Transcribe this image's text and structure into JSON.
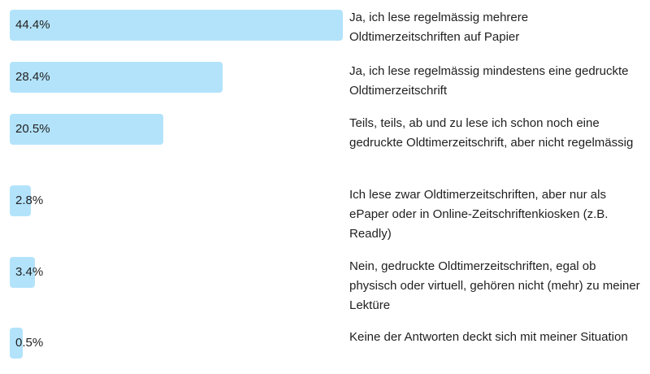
{
  "chart_data": {
    "type": "bar",
    "orientation": "horizontal",
    "color": "#b3e3fb",
    "unit": "%",
    "categories": [
      "Ja, ich lese regelmässig mehrere Oldtimerzeitschriften auf Papier",
      "Ja, ich lese regelmässig mindestens eine gedruckte Oldtimerzeitschrift",
      "Teils, teils, ab und zu lese ich schon noch eine gedruckte Oldtimerzeitschrift, aber nicht regelmässig",
      "Ich lese zwar Oldtimerzeitschriften, aber nur als ePaper oder in Online-Zeitschriftenkiosken (z.B. Readly)",
      "Nein, gedruckte Oldtimerzeitschriften, egal ob physisch oder virtuell, gehören nicht (mehr) zu meiner Lektüre",
      "Keine der Antworten deckt sich mit meiner Situation"
    ],
    "values": [
      44.4,
      28.4,
      20.5,
      2.8,
      3.4,
      0.5
    ],
    "value_labels": [
      "44.4%",
      "28.4%",
      "20.5%",
      "2.8%",
      "3.4%",
      "0.5%"
    ],
    "xlim": [
      0,
      44.4
    ]
  }
}
